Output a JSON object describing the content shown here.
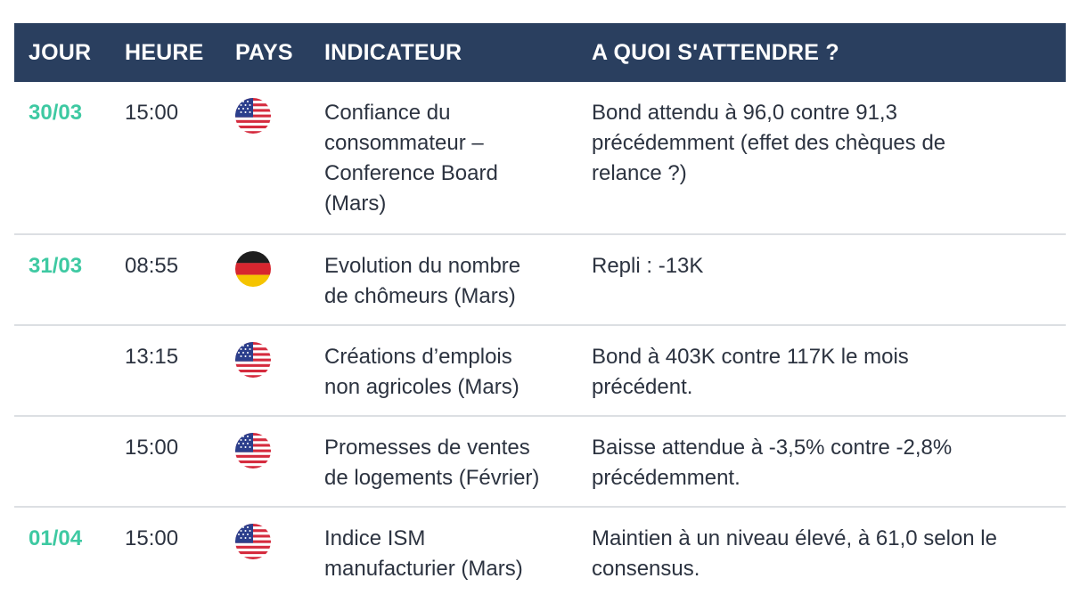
{
  "header": {
    "jour": "JOUR",
    "heure": "HEURE",
    "pays": "PAYS",
    "indicateur": "INDICATEUR",
    "attendre": "A QUOI S'ATTENDRE ?"
  },
  "colors": {
    "header_bg": "#2a3f5f",
    "day_accent": "#3ec9a2",
    "divider": "#dcdfe3"
  },
  "rows": [
    {
      "day": "30/03",
      "time": "15:00",
      "country_icon": "us-flag-icon",
      "indicator": [
        "Confiance du",
        "consommateur –",
        "Conference Board",
        "(Mars)"
      ],
      "expectation": [
        "Bond attendu à 96,0 contre 91,3",
        "précédemment (effet des chèques de",
        "relance ?)"
      ]
    },
    {
      "day": "31/03",
      "time": "08:55",
      "country_icon": "germany-flag-icon",
      "indicator": [
        "Evolution du nombre",
        "de chômeurs (Mars)"
      ],
      "expectation": [
        "Repli : -13K"
      ]
    },
    {
      "day": "",
      "time": "13:15",
      "country_icon": "us-flag-icon",
      "indicator": [
        "Créations d’emplois",
        "non agricoles (Mars)"
      ],
      "expectation": [
        "Bond à 403K contre 117K le mois",
        "précédent."
      ]
    },
    {
      "day": "",
      "time": "15:00",
      "country_icon": "us-flag-icon",
      "indicator": [
        "Promesses de ventes",
        "de logements (Février)"
      ],
      "expectation": [
        "Baisse attendue à -3,5% contre -2,8%",
        "précédemment."
      ]
    },
    {
      "day": "01/04",
      "time": "15:00",
      "country_icon": "us-flag-icon",
      "indicator": [
        "Indice ISM",
        "manufacturier (Mars)"
      ],
      "expectation": [
        "Maintien à un niveau élevé, à 61,0 selon le",
        "consensus."
      ]
    }
  ]
}
